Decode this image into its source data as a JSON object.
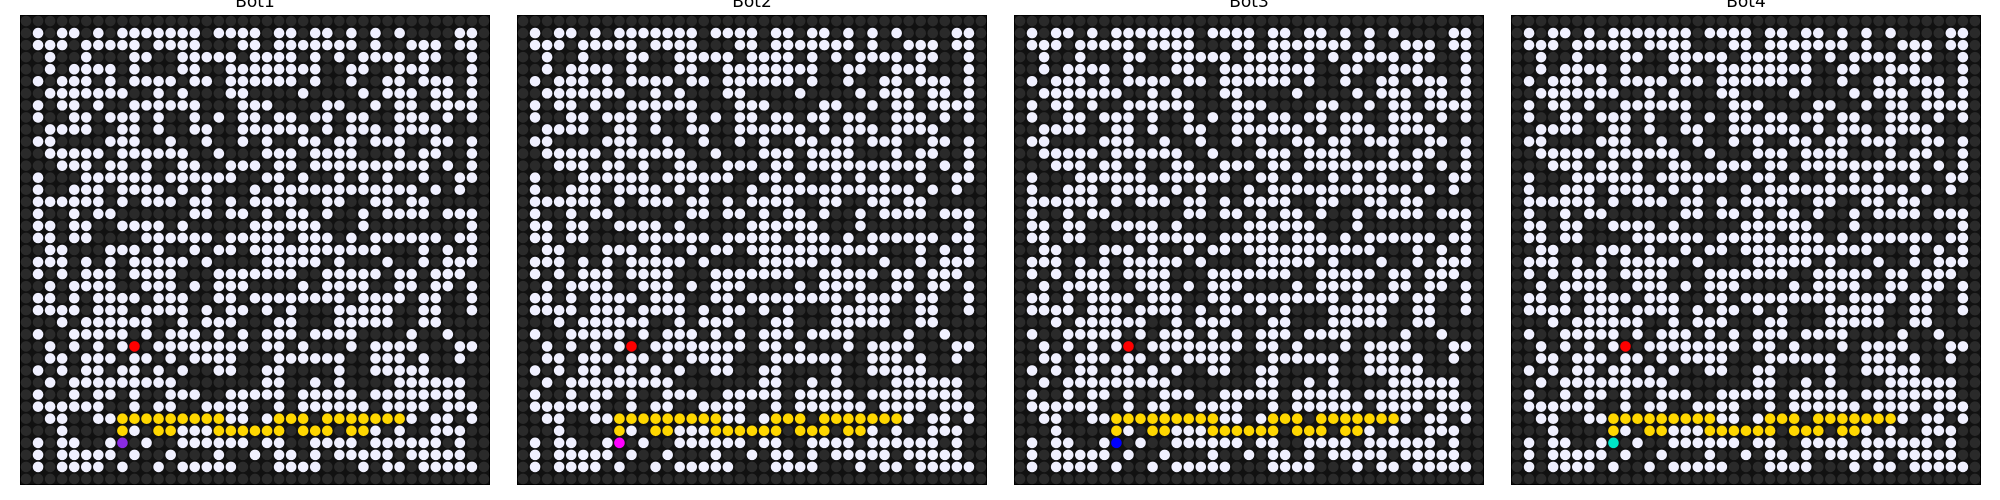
{
  "panels": [
    {
      "title": "Bot1",
      "bot_color": "#8a2be2"
    },
    {
      "title": "Bot2",
      "bot_color": "#ff00ff"
    },
    {
      "title": "Bot3",
      "bot_color": "#0000ff"
    },
    {
      "title": "Bot4",
      "bot_color": "#00e5c8"
    }
  ],
  "grid": {
    "rows": 39,
    "cols": 39,
    "open_probability": 0.62,
    "seed": 17
  },
  "target": {
    "row": 27,
    "col": 9,
    "color": "#ff0000"
  },
  "bot_start": {
    "row": 35,
    "col": 8
  },
  "path": {
    "color": "#ffd700",
    "cells": [
      [
        34,
        8
      ],
      [
        33,
        8
      ],
      [
        33,
        9
      ],
      [
        33,
        10
      ],
      [
        33,
        11
      ],
      [
        34,
        11
      ],
      [
        34,
        12
      ],
      [
        33,
        12
      ],
      [
        33,
        13
      ],
      [
        33,
        14
      ],
      [
        33,
        15
      ],
      [
        33,
        16
      ],
      [
        34,
        16
      ],
      [
        34,
        17
      ],
      [
        34,
        18
      ],
      [
        34,
        19
      ],
      [
        34,
        20
      ],
      [
        34,
        21
      ],
      [
        33,
        21
      ],
      [
        33,
        22
      ],
      [
        33,
        23
      ],
      [
        34,
        23
      ],
      [
        34,
        24
      ],
      [
        34,
        25
      ],
      [
        33,
        25
      ],
      [
        33,
        26
      ],
      [
        33,
        27
      ],
      [
        34,
        27
      ],
      [
        34,
        28
      ],
      [
        33,
        28
      ],
      [
        33,
        29
      ],
      [
        33,
        30
      ],
      [
        33,
        31
      ]
    ]
  },
  "colors": {
    "wall": "#2a2a2a",
    "open": "#f0f0ff",
    "background": "#111111"
  }
}
